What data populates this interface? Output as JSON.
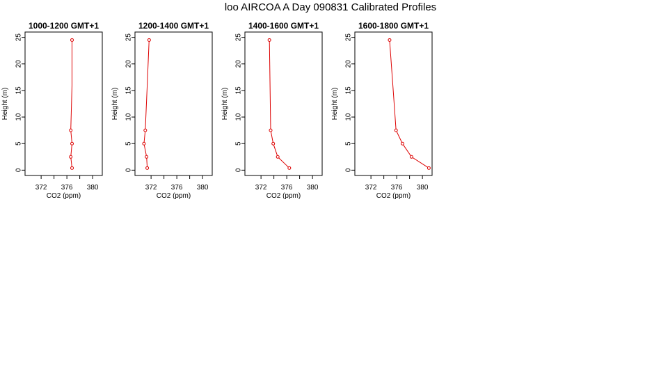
{
  "page_title": "loo AIRCOA A  Day 090831  Calibrated Profiles",
  "colors": {
    "series": "#dd0000",
    "axis": "#000000",
    "background": "#ffffff"
  },
  "chart_data": [
    {
      "type": "line",
      "title": "1000-1200 GMT+1",
      "xlabel": "CO2 (ppm)",
      "ylabel": "Height (m)",
      "xlim": [
        369.5,
        381.5
      ],
      "ylim": [
        -1,
        26
      ],
      "xticks": [
        372,
        376,
        380
      ],
      "xticks_minor": [
        374,
        378
      ],
      "yticks": [
        0,
        5,
        10,
        15,
        20,
        25
      ],
      "grid": false,
      "points": [
        {
          "x": 376.8,
          "y": 0.4
        },
        {
          "x": 376.6,
          "y": 2.5
        },
        {
          "x": 376.8,
          "y": 5.0
        },
        {
          "x": 376.6,
          "y": 7.5
        },
        {
          "x": 376.8,
          "y": 16.0
        },
        {
          "x": 376.8,
          "y": 24.5
        }
      ],
      "markers": [
        0,
        1,
        2,
        3,
        5
      ]
    },
    {
      "type": "line",
      "title": "1200-1400 GMT+1",
      "xlabel": "CO2 (ppm)",
      "ylabel": "Height (m)",
      "xlim": [
        369.5,
        381.5
      ],
      "ylim": [
        -1,
        26
      ],
      "xticks": [
        372,
        376,
        380
      ],
      "xticks_minor": [
        374,
        378
      ],
      "yticks": [
        0,
        5,
        10,
        15,
        20,
        25
      ],
      "grid": false,
      "points": [
        {
          "x": 371.4,
          "y": 0.4
        },
        {
          "x": 371.3,
          "y": 2.5
        },
        {
          "x": 370.9,
          "y": 5.0
        },
        {
          "x": 371.1,
          "y": 7.5
        },
        {
          "x": 371.4,
          "y": 16.0
        },
        {
          "x": 371.7,
          "y": 24.5
        }
      ],
      "markers": [
        0,
        1,
        2,
        3,
        5
      ]
    },
    {
      "type": "line",
      "title": "1400-1600 GMT+1",
      "xlabel": "CO2 (ppm)",
      "ylabel": "Height (m)",
      "xlim": [
        369.5,
        381.5
      ],
      "ylim": [
        -1,
        26
      ],
      "xticks": [
        372,
        376,
        380
      ],
      "xticks_minor": [
        374,
        378
      ],
      "yticks": [
        0,
        5,
        10,
        15,
        20,
        25
      ],
      "grid": false,
      "points": [
        {
          "x": 376.4,
          "y": 0.4
        },
        {
          "x": 374.6,
          "y": 2.5
        },
        {
          "x": 373.9,
          "y": 5.0
        },
        {
          "x": 373.5,
          "y": 7.5
        },
        {
          "x": 373.4,
          "y": 16.0
        },
        {
          "x": 373.3,
          "y": 24.5
        }
      ],
      "markers": [
        0,
        1,
        2,
        3,
        5
      ]
    },
    {
      "type": "line",
      "title": "1600-1800 GMT+1",
      "xlabel": "CO2 (ppm)",
      "ylabel": "Height (m)",
      "xlim": [
        369.5,
        381.5
      ],
      "ylim": [
        -1,
        26
      ],
      "xticks": [
        372,
        376,
        380
      ],
      "xticks_minor": [
        374,
        378
      ],
      "yticks": [
        0,
        5,
        10,
        15,
        20,
        25
      ],
      "grid": false,
      "points": [
        {
          "x": 381.0,
          "y": 0.4
        },
        {
          "x": 378.3,
          "y": 2.5
        },
        {
          "x": 376.9,
          "y": 5.0
        },
        {
          "x": 375.9,
          "y": 7.5
        },
        {
          "x": 375.4,
          "y": 16.0
        },
        {
          "x": 374.9,
          "y": 24.5
        }
      ],
      "markers": [
        0,
        1,
        2,
        3,
        5
      ]
    }
  ]
}
